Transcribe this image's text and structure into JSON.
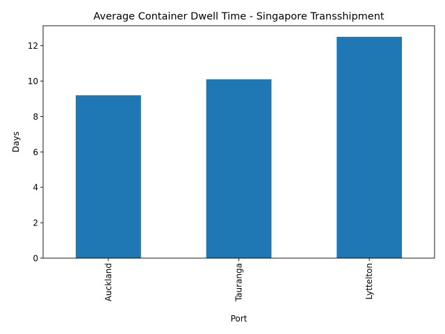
{
  "chart_data": {
    "type": "bar",
    "title": "Average Container Dwell Time - Singapore Transshipment",
    "xlabel": "Port",
    "ylabel": "Days",
    "categories": [
      "Auckland",
      "Tauranga",
      "Lyttelton"
    ],
    "values": [
      9.2,
      10.1,
      12.5
    ],
    "ylim": [
      0,
      13.125
    ],
    "yticks": [
      0,
      2,
      4,
      6,
      8,
      10,
      12
    ],
    "xtick_rotation": "vertical",
    "grid": false,
    "legend": "none",
    "bar_color": "#1f77b4"
  }
}
